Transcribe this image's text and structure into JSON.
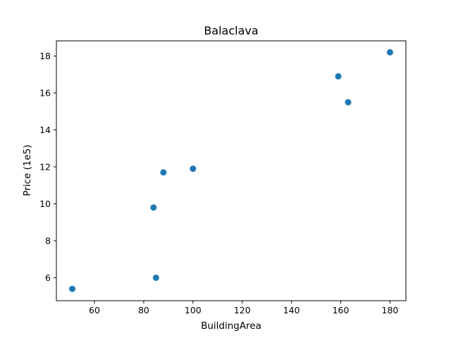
{
  "chart_data": {
    "type": "scatter",
    "title": "Balaclava",
    "xlabel": "BuildingArea",
    "ylabel": "Price (1e5)",
    "xlim": [
      44.55,
      186.45
    ],
    "ylim": [
      4.76,
      18.82
    ],
    "xticks": [
      60,
      80,
      100,
      120,
      140,
      160,
      180
    ],
    "yticks": [
      6,
      8,
      10,
      12,
      14,
      16,
      18
    ],
    "grid": false,
    "point_color": "#1f77b4",
    "points": [
      {
        "x": 51,
        "y": 5.4
      },
      {
        "x": 84,
        "y": 9.8
      },
      {
        "x": 85,
        "y": 6.0
      },
      {
        "x": 88,
        "y": 11.7
      },
      {
        "x": 100,
        "y": 11.9
      },
      {
        "x": 159,
        "y": 16.9
      },
      {
        "x": 163,
        "y": 15.5
      },
      {
        "x": 180,
        "y": 18.2
      }
    ]
  }
}
